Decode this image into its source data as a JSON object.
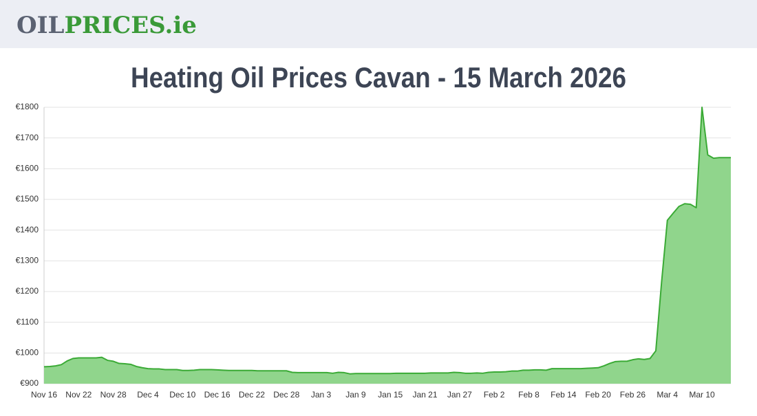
{
  "header": {
    "logo": [
      "OIL",
      "PRICES",
      ".ie"
    ]
  },
  "chart_data": {
    "type": "area",
    "title": "Heating Oil Prices Cavan - 15 March 2026",
    "color": "#3aaa35",
    "fill": "#90d58c",
    "grid": true,
    "categories": [
      "Nov 16",
      null,
      null,
      null,
      null,
      null,
      "Nov 22",
      null,
      null,
      null,
      null,
      null,
      "Nov 28",
      null,
      null,
      null,
      null,
      null,
      "Dec 4",
      null,
      null,
      null,
      null,
      null,
      "Dec 10",
      null,
      null,
      null,
      null,
      null,
      "Dec 16",
      null,
      null,
      null,
      null,
      null,
      "Dec 22",
      null,
      null,
      null,
      null,
      null,
      "Dec 28",
      null,
      null,
      null,
      null,
      null,
      "Jan 3",
      null,
      null,
      null,
      null,
      null,
      "Jan 9",
      null,
      null,
      null,
      null,
      null,
      "Jan 15",
      null,
      null,
      null,
      null,
      null,
      "Jan 21",
      null,
      null,
      null,
      null,
      null,
      "Jan 27",
      null,
      null,
      null,
      null,
      null,
      "Feb 2",
      null,
      null,
      null,
      null,
      null,
      "Feb 8",
      null,
      null,
      null,
      null,
      null,
      "Feb 14",
      null,
      null,
      null,
      null,
      null,
      "Feb 20",
      null,
      null,
      null,
      null,
      null,
      "Feb 26",
      null,
      null,
      null,
      null,
      null,
      "Mar 4",
      null,
      null,
      null,
      null,
      null,
      "Mar 10",
      null,
      null,
      null,
      null,
      null
    ],
    "values": [
      955,
      956,
      958,
      962,
      974,
      982,
      984,
      984,
      984,
      984,
      986,
      976,
      973,
      966,
      965,
      963,
      956,
      952,
      949,
      948,
      948,
      946,
      946,
      946,
      943,
      943,
      944,
      946,
      946,
      946,
      945,
      944,
      943,
      943,
      943,
      943,
      943,
      942,
      942,
      942,
      942,
      942,
      942,
      937,
      936,
      936,
      936,
      936,
      936,
      936,
      934,
      937,
      936,
      932,
      933,
      933,
      933,
      933,
      933,
      933,
      933,
      934,
      934,
      934,
      934,
      934,
      934,
      935,
      935,
      935,
      935,
      937,
      936,
      934,
      934,
      935,
      934,
      937,
      938,
      938,
      939,
      941,
      941,
      944,
      944,
      945,
      945,
      944,
      949,
      949,
      949,
      949,
      949,
      949,
      950,
      951,
      952,
      958,
      966,
      972,
      973,
      973,
      978,
      981,
      979,
      982,
      1007,
      1231,
      1432,
      1455,
      1477,
      1486,
      1484,
      1473,
      1800,
      1645,
      1634,
      1636,
      1636,
      1636
    ],
    "ylim": [
      900,
      1800
    ],
    "yticks": [
      {
        "value": 900,
        "label": "€900"
      },
      {
        "value": 1000,
        "label": "€1000"
      },
      {
        "value": 1100,
        "label": "€1100"
      },
      {
        "value": 1200,
        "label": "€1200"
      },
      {
        "value": 1300,
        "label": "€1300"
      },
      {
        "value": 1400,
        "label": "€1400"
      },
      {
        "value": 1500,
        "label": "€1500"
      },
      {
        "value": 1600,
        "label": "€1600"
      },
      {
        "value": 1700,
        "label": "€1700"
      },
      {
        "value": 1800,
        "label": "€1800"
      }
    ]
  }
}
